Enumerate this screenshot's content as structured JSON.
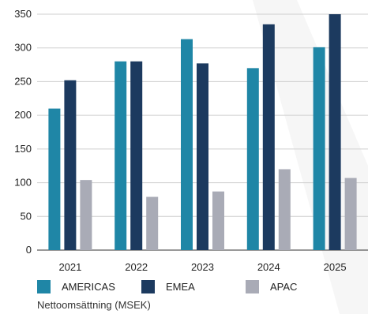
{
  "chart_data": {
    "type": "bar",
    "categories": [
      "2021",
      "2022",
      "2023",
      "2024",
      "2025"
    ],
    "series": [
      {
        "name": "AMERICAS",
        "color": "#1f86a6",
        "values": [
          210,
          280,
          313,
          270,
          301
        ]
      },
      {
        "name": "EMEA",
        "color": "#1c3a5f",
        "values": [
          252,
          280,
          277,
          335,
          350
        ]
      },
      {
        "name": "APAC",
        "color": "#a9abb6",
        "values": [
          104,
          79,
          87,
          120,
          107
        ]
      }
    ],
    "y_ticks": [
      "0",
      "50",
      "100",
      "150",
      "200",
      "250",
      "300",
      "350"
    ],
    "ylim": [
      0,
      350
    ],
    "grid": true,
    "legend_position": "bottom",
    "caption": "Nettoomsättning (MSEK)"
  }
}
